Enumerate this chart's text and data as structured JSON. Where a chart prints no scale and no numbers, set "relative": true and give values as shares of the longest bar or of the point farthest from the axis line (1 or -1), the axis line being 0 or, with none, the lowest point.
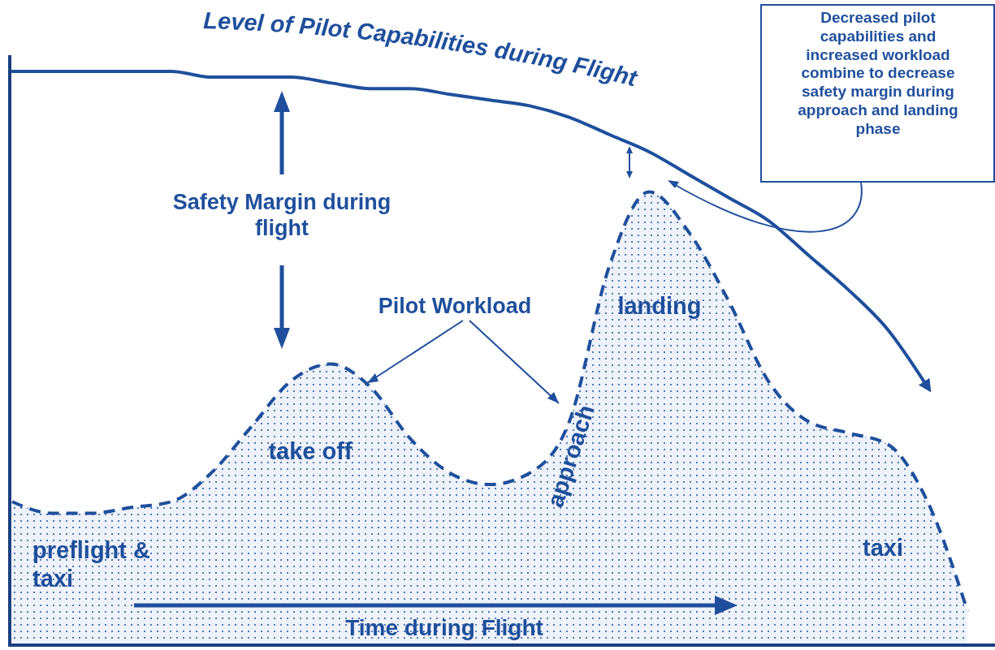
{
  "chart_data": {
    "type": "line",
    "relative": true,
    "xlabel": "Time during Flight",
    "marker": "none",
    "categories": [
      null,
      null,
      null,
      null,
      null,
      null,
      null,
      null,
      null,
      null,
      null,
      null,
      null,
      null,
      null,
      null,
      null,
      null,
      null,
      null,
      null,
      null,
      null,
      null,
      null
    ],
    "series": [
      {
        "name": "Level of Pilot Capabilities during Flight",
        "color": "#1f4f9c",
        "line_style": "solid",
        "values": [
          1.0,
          1.0,
          1.0,
          1.0,
          1.0,
          0.99,
          0.99,
          0.99,
          0.98,
          0.97,
          0.97,
          0.96,
          0.95,
          0.94,
          0.92,
          0.89,
          0.86,
          0.82,
          0.78,
          0.74,
          0.68,
          0.62,
          0.55,
          0.45,
          null
        ]
      },
      {
        "name": "Pilot Workload",
        "type": "area",
        "color": "#1f4f9c",
        "line_style": "dashed",
        "values": [
          0.25,
          0.23,
          0.23,
          0.24,
          0.25,
          0.3,
          0.38,
          0.46,
          0.49,
          0.45,
          0.36,
          0.3,
          0.28,
          0.3,
          0.39,
          0.66,
          0.79,
          0.72,
          0.6,
          0.46,
          0.39,
          0.37,
          0.35,
          0.25,
          0.06
        ]
      }
    ],
    "annotations": [
      "Safety Margin during flight",
      "preflight & taxi",
      "take off",
      "approach",
      "landing",
      "taxi",
      "Decreased pilot capabilities and increased workload combine to decrease safety margin during approach and landing phase"
    ]
  }
}
